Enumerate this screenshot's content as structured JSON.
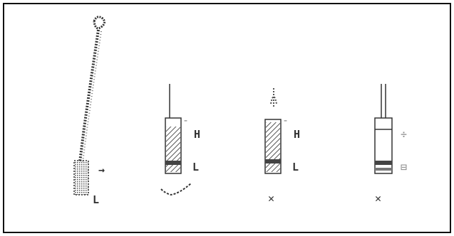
{
  "figure": {
    "ink_color": "#333333",
    "hatch_color": "#555555",
    "frame_color": "#111111",
    "label_arrow": "→",
    "label_L": "L",
    "label_H": "H",
    "items": [
      {
        "name": "rope-with-loop",
        "side_labels": [
          "→"
        ],
        "bottom_label": "L"
      },
      {
        "name": "sample-a",
        "side_labels": [
          "H",
          "L"
        ],
        "bottom_mark": "✓"
      },
      {
        "name": "sample-b",
        "side_labels": [
          "H",
          "L"
        ],
        "bottom_mark": "✕"
      },
      {
        "name": "sample-c",
        "side_labels": [
          "÷",
          "⊟"
        ],
        "bottom_mark": "✕"
      }
    ]
  }
}
